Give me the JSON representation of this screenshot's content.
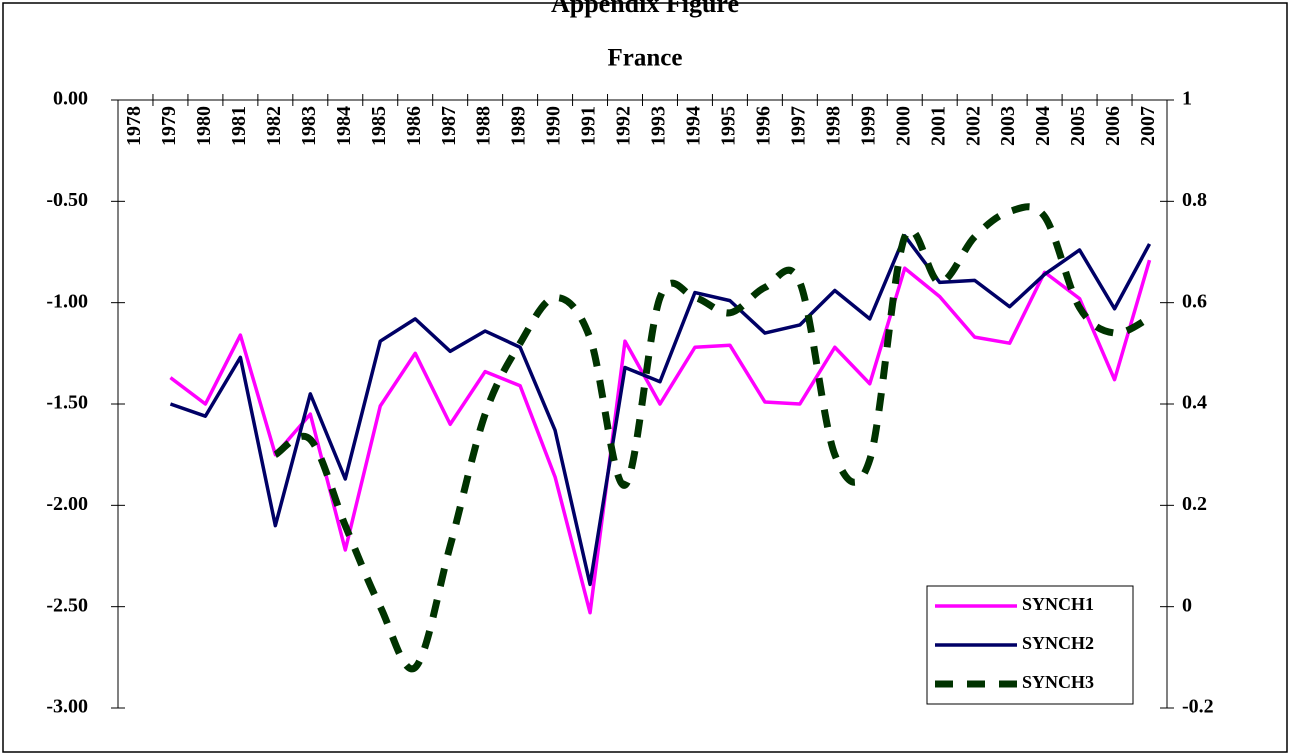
{
  "chart_data": {
    "type": "line",
    "title": "Appendix Figure",
    "subtitle": "France",
    "categories": [
      "1978",
      "1979",
      "1980",
      "1981",
      "1982",
      "1983",
      "1984",
      "1985",
      "1986",
      "1987",
      "1988",
      "1989",
      "1990",
      "1991",
      "1992",
      "1993",
      "1994",
      "1995",
      "1996",
      "1997",
      "1998",
      "1999",
      "2000",
      "2001",
      "2002",
      "2003",
      "2004",
      "2005",
      "2006",
      "2007"
    ],
    "series": [
      {
        "name": "SYNCH1",
        "color": "#ff00ff",
        "axis": "y",
        "style": "solid",
        "values": [
          null,
          -1.37,
          -1.5,
          -1.16,
          -1.75,
          -1.55,
          -2.22,
          -1.51,
          -1.25,
          -1.6,
          -1.34,
          -1.41,
          -1.86,
          -2.53,
          -1.19,
          -1.5,
          -1.22,
          -1.21,
          -1.49,
          -1.5,
          -1.22,
          -1.4,
          -0.83,
          -0.97,
          -1.17,
          -1.2,
          -0.85,
          -0.98,
          -1.38,
          -0.79
        ]
      },
      {
        "name": "SYNCH2",
        "color": "#000066",
        "axis": "y",
        "style": "solid",
        "values": [
          null,
          -1.5,
          -1.56,
          -1.27,
          -2.1,
          -1.45,
          -1.87,
          -1.19,
          -1.08,
          -1.24,
          -1.14,
          -1.22,
          -1.63,
          -2.39,
          -1.32,
          -1.39,
          -0.95,
          -0.99,
          -1.15,
          -1.11,
          -0.94,
          -1.08,
          -0.67,
          -0.9,
          -0.89,
          -1.02,
          -0.86,
          -0.74,
          -1.03,
          -0.71
        ]
      },
      {
        "name": "SYNCH3",
        "color": "#003300",
        "axis": "y2",
        "style": "dashed",
        "values": [
          null,
          null,
          null,
          null,
          0.3,
          0.33,
          0.16,
          0.0,
          -0.12,
          0.12,
          0.38,
          0.52,
          0.61,
          0.53,
          0.24,
          0.61,
          0.61,
          0.58,
          0.63,
          0.64,
          0.3,
          0.29,
          0.73,
          0.64,
          0.73,
          0.78,
          0.77,
          0.59,
          0.54,
          0.57
        ]
      }
    ],
    "ylim": [
      -3,
      0
    ],
    "yticks": [
      {
        "value": 0,
        "label": "0.00"
      },
      {
        "value": -0.5,
        "label": "-0.50"
      },
      {
        "value": -1,
        "label": "-1.00"
      },
      {
        "value": -1.5,
        "label": "-1.50"
      },
      {
        "value": -2,
        "label": "-2.00"
      },
      {
        "value": -2.5,
        "label": "-2.50"
      },
      {
        "value": -3,
        "label": "-3.00"
      }
    ],
    "y2lim": [
      -0.2,
      1
    ],
    "y2ticks": [
      1,
      0.8,
      0.6,
      0.4,
      0.2,
      0,
      -0.2
    ],
    "legend": "lower right",
    "grid": false
  }
}
